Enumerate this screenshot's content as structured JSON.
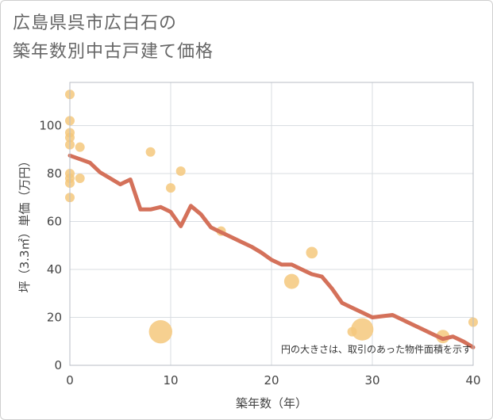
{
  "title_lines": [
    "広島県呉市広白石の",
    "築年数別中古戸建て価格"
  ],
  "chart_data": {
    "type": "scatter+line",
    "xlabel": "築年数（年）",
    "ylabel": "坪（3.3㎡）単価（万円）",
    "xlim": [
      0,
      40
    ],
    "ylim": [
      0,
      118
    ],
    "xticks": [
      0,
      10,
      20,
      30,
      40
    ],
    "yticks": [
      0,
      20,
      40,
      60,
      80,
      100
    ],
    "annotation": "円の大きさは、取引のあった物件面積を示す",
    "colors": {
      "line": "#d4715a",
      "bubble": "#f5c87c",
      "grid": "#d9dde2",
      "frame": "#b8bec6"
    },
    "points": [
      {
        "x": 0,
        "y": 113,
        "s": 1
      },
      {
        "x": 0,
        "y": 102,
        "s": 1
      },
      {
        "x": 0,
        "y": 97,
        "s": 1
      },
      {
        "x": 0,
        "y": 95,
        "s": 1
      },
      {
        "x": 0,
        "y": 92,
        "s": 1
      },
      {
        "x": 0,
        "y": 80,
        "s": 1
      },
      {
        "x": 0,
        "y": 78,
        "s": 1
      },
      {
        "x": 0,
        "y": 76,
        "s": 1
      },
      {
        "x": 0,
        "y": 70,
        "s": 1
      },
      {
        "x": 1,
        "y": 91,
        "s": 1
      },
      {
        "x": 1,
        "y": 78,
        "s": 1
      },
      {
        "x": 8,
        "y": 89,
        "s": 1
      },
      {
        "x": 9,
        "y": 14,
        "s": 6
      },
      {
        "x": 10,
        "y": 74,
        "s": 1
      },
      {
        "x": 11,
        "y": 81,
        "s": 1
      },
      {
        "x": 15,
        "y": 56,
        "s": 1
      },
      {
        "x": 22,
        "y": 35,
        "s": 2.5
      },
      {
        "x": 24,
        "y": 47,
        "s": 1.5
      },
      {
        "x": 28,
        "y": 14,
        "s": 1
      },
      {
        "x": 29,
        "y": 15,
        "s": 5.5
      },
      {
        "x": 37,
        "y": 12,
        "s": 2
      },
      {
        "x": 40,
        "y": 18,
        "s": 1
      }
    ],
    "trend": {
      "x": [
        0,
        1,
        2,
        3,
        4,
        5,
        6,
        7,
        8,
        9,
        10,
        11,
        12,
        13,
        14,
        15,
        16,
        17,
        18,
        19,
        20,
        21,
        22,
        23,
        24,
        25,
        26,
        27,
        28,
        29,
        30,
        31,
        32,
        33,
        34,
        35,
        36,
        37,
        38,
        39,
        40
      ],
      "y": [
        87.5,
        86,
        84.5,
        80.5,
        78,
        75.5,
        77.5,
        65,
        65,
        66,
        64,
        58,
        66.5,
        63,
        57.5,
        55.5,
        53.5,
        51.5,
        49.5,
        47,
        44,
        42,
        42,
        40,
        38,
        37,
        32,
        26,
        24,
        22,
        20,
        20.5,
        21,
        19,
        17,
        15,
        13,
        11,
        12,
        10,
        7.5
      ]
    }
  }
}
